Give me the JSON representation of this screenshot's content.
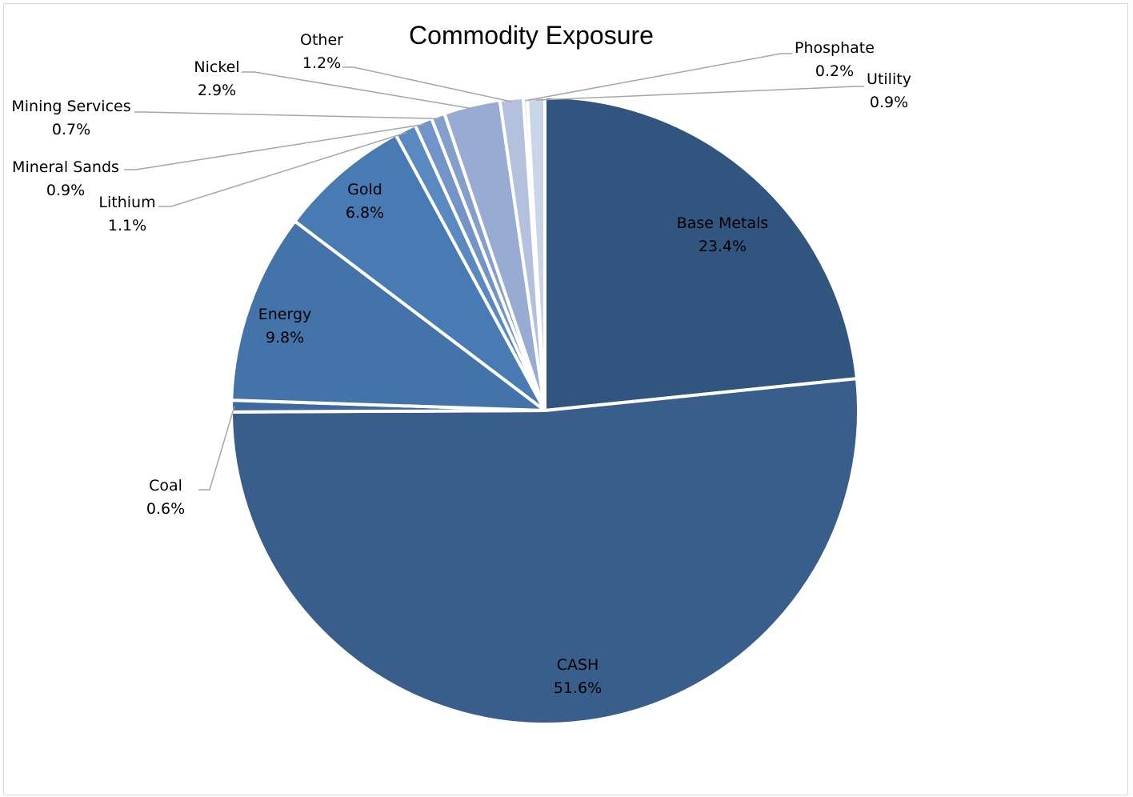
{
  "chart_data": {
    "type": "pie",
    "title": "Commodity Exposure",
    "start_angle_deg": 0,
    "direction": "clockwise",
    "slices": [
      {
        "label": "Base Metals",
        "value": 23.4,
        "display": "23.4%",
        "color": "#31557e"
      },
      {
        "label": "CASH",
        "value": 51.6,
        "display": "51.6%",
        "color": "#3a5e8c"
      },
      {
        "label": "Coal",
        "value": 0.6,
        "display": "0.6%",
        "color": "#3f68a0"
      },
      {
        "label": "Energy",
        "value": 9.8,
        "display": "9.8%",
        "color": "#4473aa"
      },
      {
        "label": "Gold",
        "value": 6.8,
        "display": "6.8%",
        "color": "#487bb4"
      },
      {
        "label": "Lithium",
        "value": 1.1,
        "display": "1.1%",
        "color": "#5a88c0"
      },
      {
        "label": "Mineral Sands",
        "value": 0.9,
        "display": "0.9%",
        "color": "#7394c8"
      },
      {
        "label": "Mining Services",
        "value": 0.7,
        "display": "0.7%",
        "color": "#859fcd"
      },
      {
        "label": "Nickel",
        "value": 2.9,
        "display": "2.9%",
        "color": "#97abd3"
      },
      {
        "label": "Other",
        "value": 1.2,
        "display": "1.2%",
        "color": "#b3c1df"
      },
      {
        "label": "Phosphate",
        "value": 0.2,
        "display": "0.2%",
        "color": "#c6d0e6"
      },
      {
        "label": "Utility",
        "value": 0.9,
        "display": "0.9%",
        "color": "#cbd5e8"
      }
    ]
  }
}
